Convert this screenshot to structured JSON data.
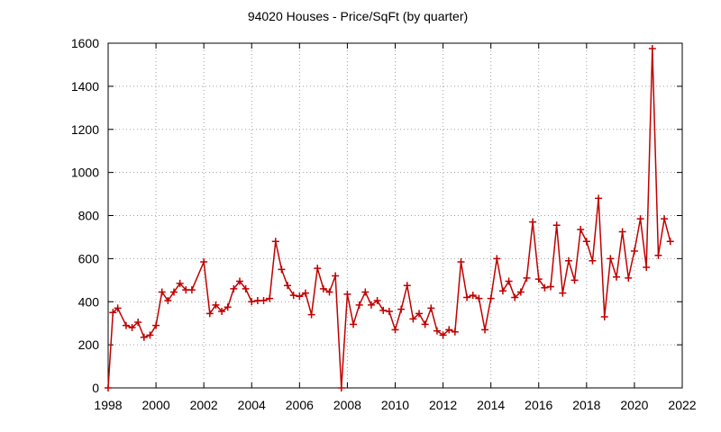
{
  "chart_data": {
    "type": "line",
    "title": "94020 Houses - Price/SqFt (by quarter)",
    "xlabel": "",
    "ylabel": "",
    "xlim": [
      1998,
      2022
    ],
    "ylim": [
      0,
      1600
    ],
    "xticks": [
      "1998",
      "2000",
      "2002",
      "2004",
      "2006",
      "2008",
      "2010",
      "2012",
      "2014",
      "2016",
      "2018",
      "2020",
      "2022"
    ],
    "yticks": [
      "0",
      "200",
      "400",
      "600",
      "800",
      "1000",
      "1200",
      "1400",
      "1600"
    ],
    "grid": true,
    "legend": "none",
    "colors": {
      "series": "#c00000",
      "grid": "#a0a0a0",
      "axis": "#000000"
    },
    "series": [
      {
        "x": [
          1998.0,
          1998.2,
          1998.4,
          1998.75,
          1999.0,
          1999.25,
          1999.5,
          1999.75,
          2000.0,
          2000.25,
          2000.5,
          2000.75,
          2001.0,
          2001.25,
          2001.5,
          2002.0,
          2002.25,
          2002.5,
          2002.75,
          2003.0,
          2003.25,
          2003.5,
          2003.75,
          2004.0,
          2004.25,
          2004.5,
          2004.75,
          2005.0,
          2005.25,
          2005.5,
          2005.75,
          2006.0,
          2006.25,
          2006.5,
          2006.75,
          2007.0,
          2007.25,
          2007.5,
          2007.75,
          2008.0,
          2008.25,
          2008.5,
          2008.75,
          2009.0,
          2009.25,
          2009.5,
          2009.75,
          2010.0,
          2010.25,
          2010.5,
          2010.75,
          2011.0,
          2011.25,
          2011.5,
          2011.75,
          2012.0,
          2012.25,
          2012.5,
          2012.75,
          2013.0,
          2013.25,
          2013.5,
          2013.75,
          2014.0,
          2014.25,
          2014.5,
          2014.75,
          2015.0,
          2015.25,
          2015.5,
          2015.75,
          2016.0,
          2016.25,
          2016.5,
          2016.75,
          2017.0,
          2017.25,
          2017.5,
          2017.75,
          2018.0,
          2018.25,
          2018.5,
          2018.75,
          2019.0,
          2019.25,
          2019.5,
          2019.75,
          2020.0,
          2020.25,
          2020.5,
          2020.75,
          2021.0,
          2021.25,
          2021.5
        ],
        "y": [
          0,
          350,
          370,
          290,
          280,
          305,
          235,
          245,
          290,
          445,
          405,
          445,
          485,
          455,
          455,
          585,
          345,
          385,
          355,
          375,
          460,
          495,
          460,
          400,
          405,
          405,
          415,
          680,
          550,
          475,
          430,
          425,
          440,
          340,
          555,
          460,
          445,
          520,
          0,
          435,
          295,
          385,
          445,
          385,
          405,
          360,
          355,
          270,
          365,
          475,
          320,
          345,
          295,
          370,
          265,
          245,
          270,
          260,
          585,
          420,
          430,
          415,
          270,
          415,
          600,
          450,
          495,
          420,
          445,
          510,
          770,
          505,
          465,
          470,
          755,
          440,
          590,
          500,
          735,
          680,
          590,
          880,
          330,
          600,
          515,
          725,
          510,
          635,
          785,
          560,
          1575,
          615,
          785,
          680
        ]
      }
    ]
  }
}
